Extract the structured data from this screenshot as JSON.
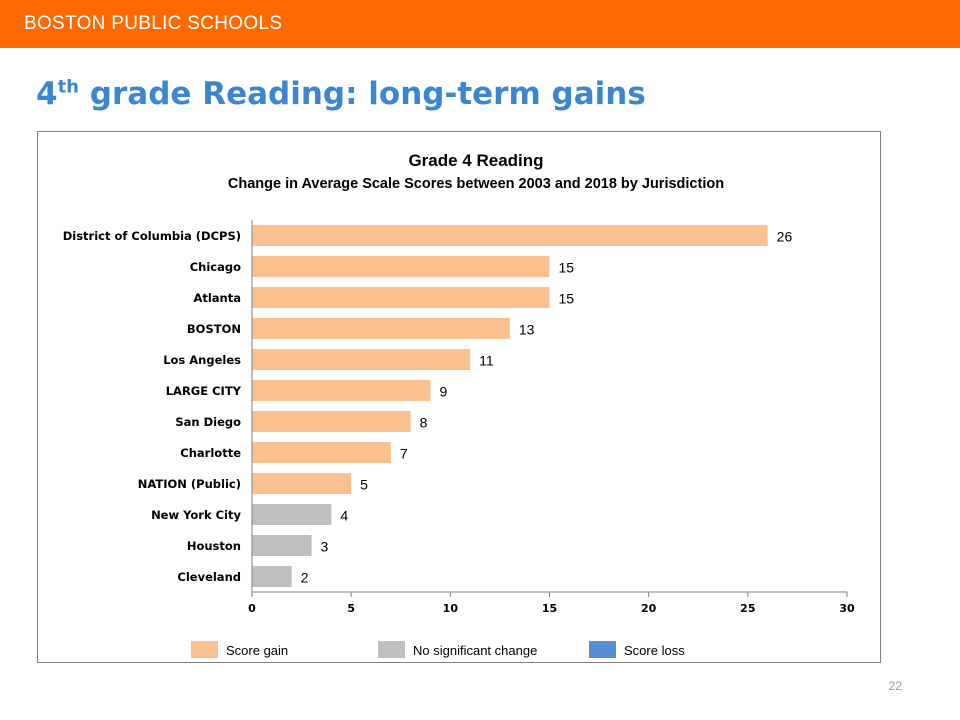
{
  "header": {
    "org": "BOSTON PUBLIC SCHOOLS",
    "brand_color": "#FF6A00"
  },
  "slide": {
    "title_number": "4",
    "title_superscript": "th",
    "title_rest": " grade Reading: long-term gains",
    "title_color": "#3A86D1",
    "page_number": "22"
  },
  "chart_data": {
    "type": "bar",
    "orientation": "horizontal",
    "title": "Grade 4 Reading",
    "subtitle": "Change in Average Scale Scores between 2003 and 2018 by Jurisdiction",
    "categories": [
      "District of Columbia (DCPS)",
      "Chicago",
      "Atlanta",
      "BOSTON",
      "Los Angeles",
      "LARGE CITY",
      "San Diego",
      "Charlotte",
      "NATION (Public)",
      "New York City",
      "Houston",
      "Cleveland"
    ],
    "values": [
      26,
      15,
      15,
      13,
      11,
      9,
      8,
      7,
      5,
      4,
      3,
      2
    ],
    "status": [
      "gain",
      "gain",
      "gain",
      "gain",
      "gain",
      "gain",
      "gain",
      "gain",
      "gain",
      "no_change",
      "no_change",
      "no_change"
    ],
    "xlim": [
      0,
      30
    ],
    "xticks": [
      0,
      5,
      10,
      15,
      20,
      25,
      30
    ],
    "xlabel": "",
    "ylabel": "",
    "grid": false,
    "legend_position": "bottom",
    "legend": [
      {
        "key": "gain",
        "label": "Score gain",
        "color": "#FAC090"
      },
      {
        "key": "no_change",
        "label": "No significant change",
        "color": "#BFBFBF"
      },
      {
        "key": "loss",
        "label": "Score loss",
        "color": "#558ED5"
      }
    ]
  }
}
